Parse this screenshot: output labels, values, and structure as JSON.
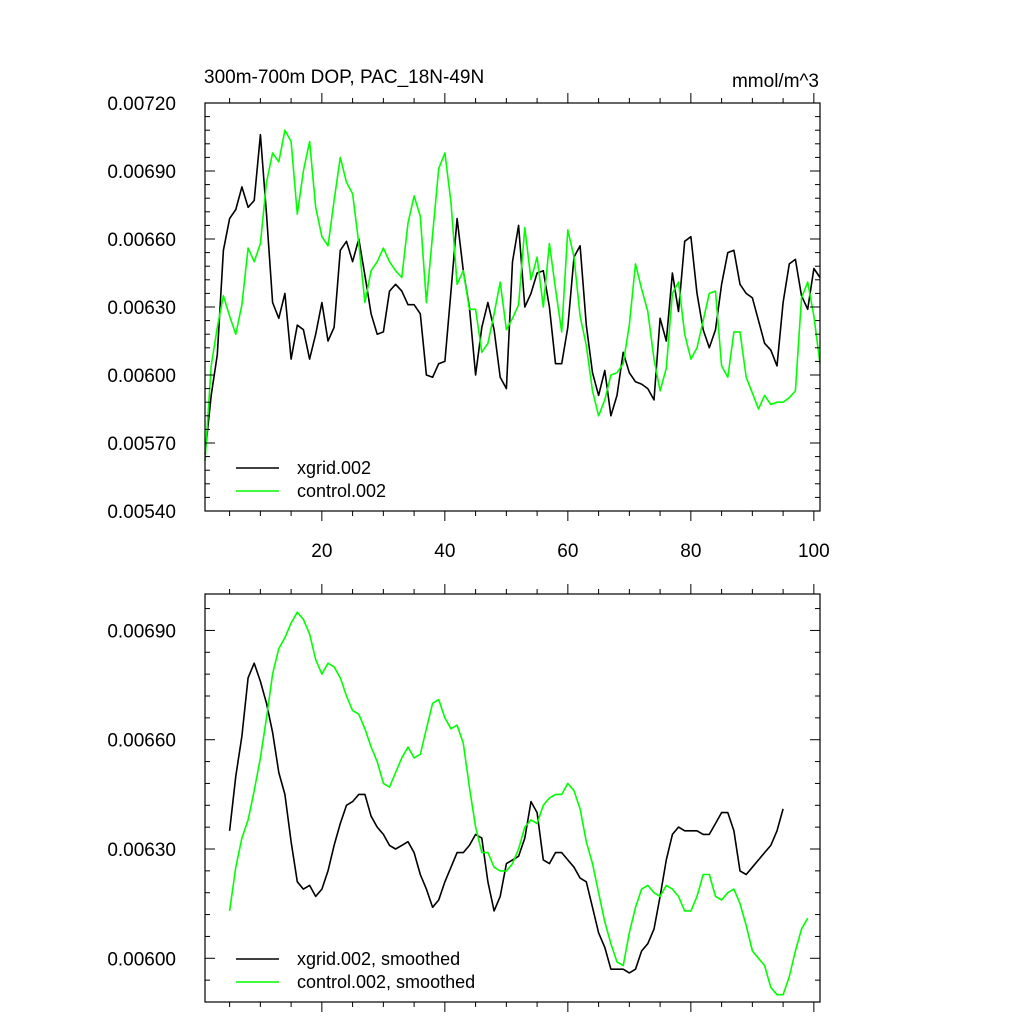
{
  "chart_data": [
    {
      "type": "line",
      "title": "300m-700m DOP, PAC_18N-49N",
      "units": "mmol/m^3",
      "xlim": [
        1,
        101
      ],
      "ylim": [
        0.0054,
        0.0072
      ],
      "yticks": [
        0.0054,
        0.0057,
        0.006,
        0.0063,
        0.0066,
        0.0069,
        0.0072
      ],
      "ytick_labels": [
        "0.00540",
        "0.00570",
        "0.00600",
        "0.00630",
        "0.00660",
        "0.00690",
        "0.00720"
      ],
      "xticks": [
        20,
        40,
        60,
        80,
        100
      ],
      "xtick_labels": [
        "20",
        "40",
        "60",
        "80",
        "100"
      ],
      "legend_position": "bottom-left",
      "series": [
        {
          "name": "xgrid.002",
          "color": "#000000",
          "x_start": 1,
          "values": [
            0.00565,
            0.00591,
            0.00609,
            0.00655,
            0.00669,
            0.00673,
            0.00683,
            0.00674,
            0.00677,
            0.00706,
            0.00671,
            0.00632,
            0.00625,
            0.00636,
            0.00607,
            0.00622,
            0.0062,
            0.00607,
            0.00618,
            0.00632,
            0.00615,
            0.00621,
            0.00655,
            0.00659,
            0.0065,
            0.0066,
            0.00644,
            0.00627,
            0.00618,
            0.00619,
            0.00637,
            0.0064,
            0.00637,
            0.00631,
            0.00631,
            0.00627,
            0.006,
            0.00599,
            0.00605,
            0.00606,
            0.00637,
            0.00669,
            0.00646,
            0.0063,
            0.006,
            0.00621,
            0.00632,
            0.0062,
            0.00599,
            0.00594,
            0.0065,
            0.00666,
            0.0063,
            0.00636,
            0.00645,
            0.00646,
            0.0063,
            0.00605,
            0.00605,
            0.00621,
            0.00652,
            0.00657,
            0.00622,
            0.00601,
            0.00591,
            0.00602,
            0.00582,
            0.00591,
            0.0061,
            0.00601,
            0.00597,
            0.00596,
            0.00594,
            0.00589,
            0.00625,
            0.00615,
            0.00645,
            0.00628,
            0.00659,
            0.00661,
            0.00636,
            0.0062,
            0.00612,
            0.0062,
            0.0064,
            0.00654,
            0.00655,
            0.0064,
            0.00636,
            0.00634,
            0.00624,
            0.00614,
            0.00611,
            0.00604,
            0.00632,
            0.00649,
            0.00651,
            0.00635,
            0.00629,
            0.00647,
            0.00643
          ]
        },
        {
          "name": "control.002",
          "color": "#00ff00",
          "x_start": 1,
          "values": [
            0.00562,
            0.00604,
            0.00621,
            0.00635,
            0.00626,
            0.00618,
            0.00631,
            0.00656,
            0.0065,
            0.00658,
            0.00685,
            0.00698,
            0.00694,
            0.00708,
            0.00703,
            0.00671,
            0.0069,
            0.00703,
            0.00674,
            0.00661,
            0.00657,
            0.00677,
            0.00696,
            0.00685,
            0.0068,
            0.00658,
            0.00632,
            0.00646,
            0.0065,
            0.00656,
            0.0065,
            0.00646,
            0.00643,
            0.00667,
            0.00679,
            0.0067,
            0.00632,
            0.00662,
            0.00691,
            0.00698,
            0.00676,
            0.0064,
            0.00646,
            0.00629,
            0.00629,
            0.0061,
            0.00614,
            0.00627,
            0.00641,
            0.0062,
            0.00625,
            0.00631,
            0.00665,
            0.00642,
            0.00652,
            0.0063,
            0.00658,
            0.00638,
            0.00619,
            0.00664,
            0.00652,
            0.00626,
            0.00613,
            0.00593,
            0.00582,
            0.00589,
            0.006,
            0.00601,
            0.00605,
            0.00622,
            0.00649,
            0.00638,
            0.00628,
            0.00607,
            0.00593,
            0.00603,
            0.00636,
            0.00641,
            0.00618,
            0.00607,
            0.00612,
            0.00624,
            0.00636,
            0.00637,
            0.00604,
            0.00599,
            0.00619,
            0.00619,
            0.00599,
            0.00592,
            0.00585,
            0.00591,
            0.00587,
            0.00588,
            0.00588,
            0.0059,
            0.00593,
            0.00634,
            0.00641,
            0.00626,
            0.00605
          ]
        }
      ]
    },
    {
      "type": "line",
      "title": "",
      "xlim": [
        1,
        101
      ],
      "ylim": [
        0.00588,
        0.007
      ],
      "yticks": [
        0.006,
        0.0063,
        0.0066,
        0.0069
      ],
      "ytick_labels": [
        "0.00600",
        "0.00630",
        "0.00660",
        "0.00690"
      ],
      "xticks": [
        20,
        40,
        60,
        80,
        100
      ],
      "xtick_labels": [],
      "legend_position": "bottom-left",
      "series": [
        {
          "name": "xgrid.002, smoothed",
          "color": "#000000",
          "x_start": 5,
          "values": [
            0.00635,
            0.0065,
            0.00661,
            0.00677,
            0.00681,
            0.00676,
            0.0067,
            0.00662,
            0.00651,
            0.00645,
            0.00632,
            0.00621,
            0.00619,
            0.0062,
            0.00617,
            0.00619,
            0.00624,
            0.00631,
            0.00637,
            0.00642,
            0.00643,
            0.00645,
            0.00645,
            0.00639,
            0.00636,
            0.00634,
            0.00631,
            0.0063,
            0.00631,
            0.00632,
            0.00629,
            0.00623,
            0.00619,
            0.00614,
            0.00616,
            0.00621,
            0.00625,
            0.00629,
            0.00629,
            0.00631,
            0.00634,
            0.00633,
            0.00621,
            0.00613,
            0.00617,
            0.00626,
            0.00627,
            0.00628,
            0.00633,
            0.00643,
            0.0064,
            0.00627,
            0.00626,
            0.00629,
            0.00629,
            0.00627,
            0.00625,
            0.00622,
            0.00621,
            0.00614,
            0.00607,
            0.00603,
            0.00597,
            0.00597,
            0.00597,
            0.00596,
            0.00597,
            0.00602,
            0.00604,
            0.00608,
            0.00617,
            0.00627,
            0.00634,
            0.00636,
            0.00635,
            0.00635,
            0.00635,
            0.00634,
            0.00634,
            0.00637,
            0.0064,
            0.0064,
            0.00635,
            0.00624,
            0.00623,
            0.00625,
            0.00627,
            0.00629,
            0.00631,
            0.00635,
            0.00641
          ]
        },
        {
          "name": "control.002, smoothed",
          "color": "#00ff00",
          "x_start": 5,
          "values": [
            0.00613,
            0.00625,
            0.00633,
            0.00638,
            0.00646,
            0.00655,
            0.00666,
            0.00678,
            0.00685,
            0.00688,
            0.00692,
            0.00695,
            0.00693,
            0.00689,
            0.00682,
            0.00678,
            0.00681,
            0.0068,
            0.00677,
            0.00672,
            0.00668,
            0.00667,
            0.00663,
            0.00658,
            0.00654,
            0.00648,
            0.00647,
            0.00651,
            0.00655,
            0.00658,
            0.00655,
            0.00656,
            0.00663,
            0.0067,
            0.00671,
            0.00666,
            0.00663,
            0.00664,
            0.00659,
            0.00647,
            0.00636,
            0.00629,
            0.00629,
            0.00625,
            0.00624,
            0.00624,
            0.00626,
            0.0063,
            0.00636,
            0.00638,
            0.00637,
            0.00642,
            0.00644,
            0.00645,
            0.00645,
            0.00648,
            0.00646,
            0.00641,
            0.00632,
            0.00626,
            0.00618,
            0.0061,
            0.00604,
            0.00599,
            0.00598,
            0.00607,
            0.00614,
            0.00619,
            0.0062,
            0.00618,
            0.00617,
            0.0062,
            0.00619,
            0.00617,
            0.00613,
            0.00613,
            0.00617,
            0.00623,
            0.00623,
            0.00617,
            0.00616,
            0.00618,
            0.00619,
            0.00615,
            0.00609,
            0.00602,
            0.006,
            0.00598,
            0.00592,
            0.0059,
            0.0059,
            0.00595,
            0.00602,
            0.00608,
            0.00611
          ]
        }
      ]
    }
  ]
}
